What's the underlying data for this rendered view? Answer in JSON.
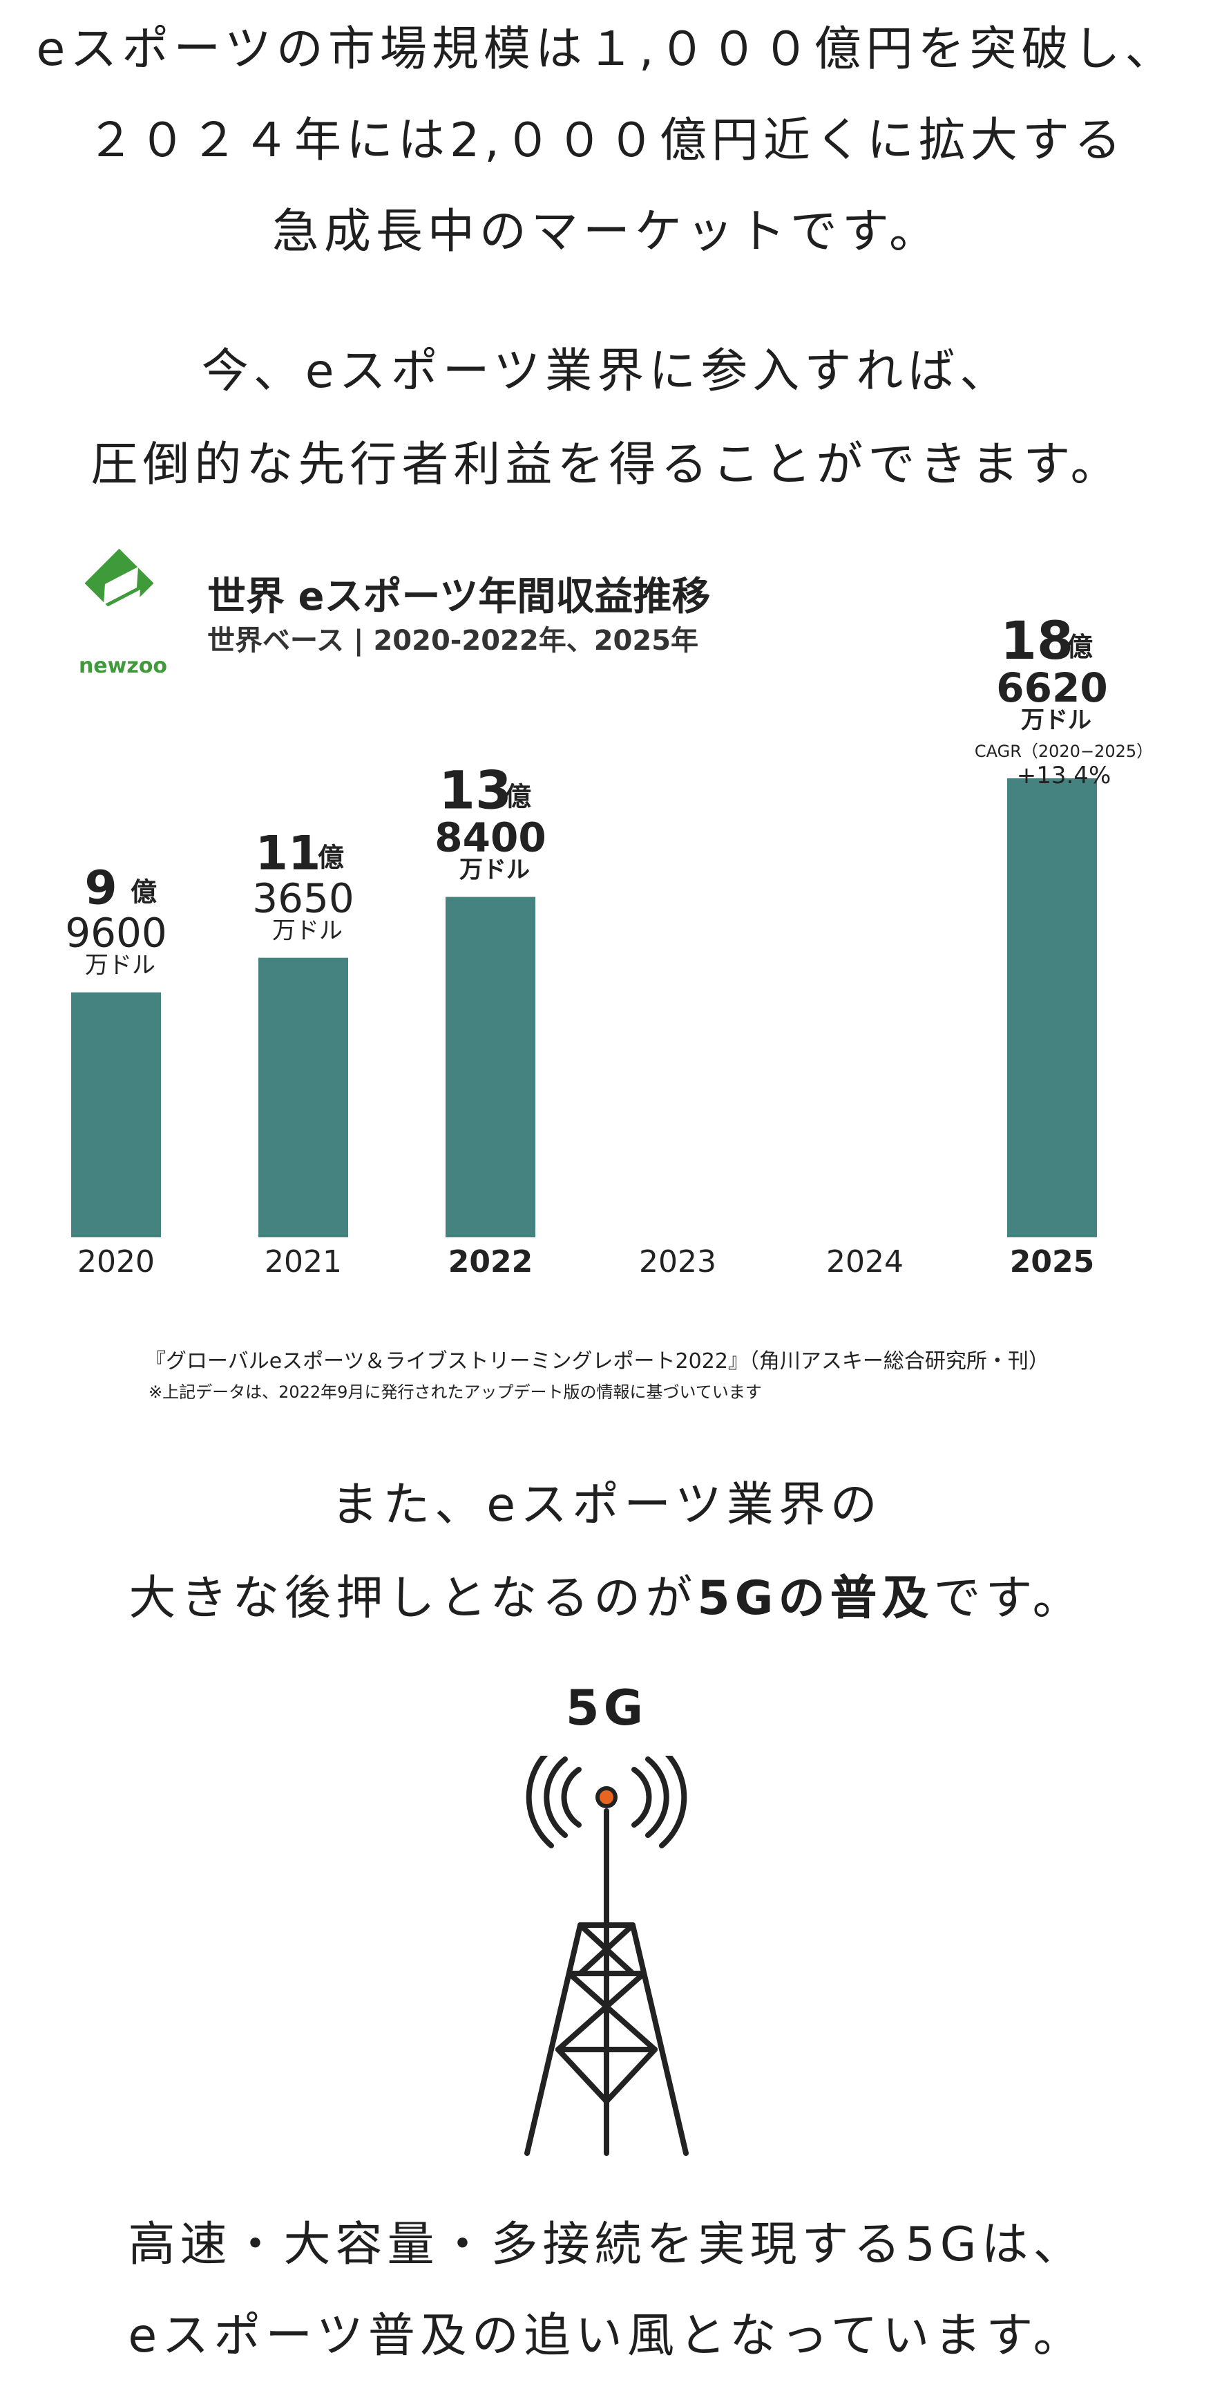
{
  "intro": [
    "eスポーツの市場規模は１,０００億円を突破し、",
    "２０２４年には2,０００億円近くに拡大する",
    "急成長中のマーケットです。"
  ],
  "intro2": [
    "今、eスポーツ業界に参入すれば、",
    "圧倒的な先行者利益を得ることができます。"
  ],
  "chart_data": {
    "type": "bar",
    "title": "世界 eスポーツ年間収益推移",
    "subtitle": "世界ベース | 2020-2022年、2025年",
    "logo_text": "newzoo",
    "categories": [
      "2020",
      "2021",
      "2022",
      "2023",
      "2024",
      "2025"
    ],
    "values": [
      9.96,
      11.365,
      13.84,
      null,
      null,
      18.662
    ],
    "unit": "億ドル",
    "ylim": [
      0,
      19
    ],
    "bar_color": "#44837f",
    "bold_categories": [
      "2022",
      "2025"
    ],
    "labels": [
      {
        "big": "9",
        "oku": "億",
        "num": "9600",
        "unit": "万ドル"
      },
      {
        "big": "11",
        "oku": "億",
        "num": "3650",
        "unit": "万ドル"
      },
      {
        "big": "13",
        "oku": "億",
        "num": "8400",
        "unit": "万ドル"
      },
      null,
      null,
      {
        "big": "18",
        "oku": "億",
        "num": "6620",
        "unit": "万ドル"
      }
    ],
    "cagr_label": "CAGR（2020−2025）",
    "cagr_value": "+13.4%",
    "source": "『グローバルeスポーツ＆ライブストリーミングレポート2022』（角川アスキー総合研究所・刊）",
    "note": "※上記データは、2022年9月に発行されたアップデート版の情報に基づいています"
  },
  "mid": {
    "line1": "また、eスポーツ業界の",
    "line2_pre": "大きな後押しとなるのが",
    "line2_hl": "5Gの普及",
    "line2_post": "です。"
  },
  "tower": {
    "label": "5G",
    "signal_color": "#e8641f",
    "line_color": "#222222"
  },
  "bottom": [
    "高速・大容量・多接続を実現する5Gは、",
    "eスポーツ普及の追い風となっています。"
  ]
}
